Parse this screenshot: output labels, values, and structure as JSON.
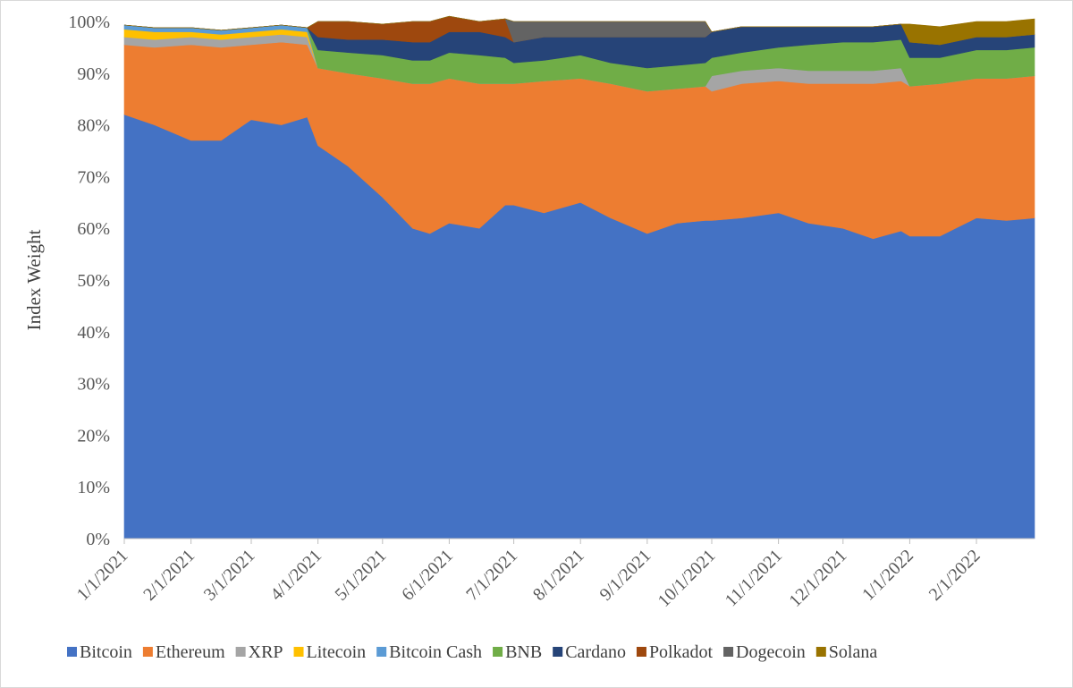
{
  "chart_data": {
    "type": "area",
    "stacked": true,
    "title": "",
    "xlabel": "",
    "ylabel": "Index Weight",
    "ylim": [
      0,
      1
    ],
    "y_ticks": [
      "0%",
      "10%",
      "20%",
      "30%",
      "40%",
      "50%",
      "60%",
      "70%",
      "80%",
      "90%",
      "100%"
    ],
    "x_range": [
      "2021-01-01",
      "2022-02-28"
    ],
    "x_ticks": [
      {
        "date": "2021-01-01",
        "label": "1/1/2021"
      },
      {
        "date": "2021-02-01",
        "label": "2/1/2021"
      },
      {
        "date": "2021-03-01",
        "label": "3/1/2021"
      },
      {
        "date": "2021-04-01",
        "label": "4/1/2021"
      },
      {
        "date": "2021-05-01",
        "label": "5/1/2021"
      },
      {
        "date": "2021-06-01",
        "label": "6/1/2021"
      },
      {
        "date": "2021-07-01",
        "label": "7/1/2021"
      },
      {
        "date": "2021-08-01",
        "label": "8/1/2021"
      },
      {
        "date": "2021-09-01",
        "label": "9/1/2021"
      },
      {
        "date": "2021-10-01",
        "label": "10/1/2021"
      },
      {
        "date": "2021-11-01",
        "label": "11/1/2021"
      },
      {
        "date": "2021-12-01",
        "label": "12/1/2021"
      },
      {
        "date": "2022-01-01",
        "label": "1/1/2022"
      },
      {
        "date": "2022-02-01",
        "label": "2/1/2022"
      }
    ],
    "grid": false,
    "legend_position": "bottom",
    "x": [
      "2021-01-01",
      "2021-01-15",
      "2021-02-01",
      "2021-02-15",
      "2021-03-01",
      "2021-03-15",
      "2021-03-27",
      "2021-04-01",
      "2021-04-15",
      "2021-05-01",
      "2021-05-15",
      "2021-05-23",
      "2021-06-01",
      "2021-06-15",
      "2021-06-27",
      "2021-07-01",
      "2021-07-15",
      "2021-08-01",
      "2021-08-15",
      "2021-09-01",
      "2021-09-15",
      "2021-09-28",
      "2021-10-01",
      "2021-10-15",
      "2021-11-01",
      "2021-11-15",
      "2021-12-01",
      "2021-12-15",
      "2021-12-28",
      "2022-01-01",
      "2022-01-15",
      "2022-02-01",
      "2022-02-15",
      "2022-02-28"
    ],
    "series": [
      {
        "name": "Bitcoin",
        "color": "#4472c4",
        "values": [
          0.82,
          0.8,
          0.77,
          0.77,
          0.81,
          0.8,
          0.815,
          0.76,
          0.72,
          0.66,
          0.6,
          0.59,
          0.61,
          0.6,
          0.645,
          0.645,
          0.63,
          0.65,
          0.62,
          0.59,
          0.61,
          0.615,
          0.615,
          0.62,
          0.63,
          0.61,
          0.6,
          0.58,
          0.595,
          0.585,
          0.585,
          0.62,
          0.615,
          0.62
        ]
      },
      {
        "name": "Ethereum",
        "color": "#ed7d31",
        "values": [
          0.135,
          0.15,
          0.185,
          0.18,
          0.145,
          0.16,
          0.14,
          0.15,
          0.18,
          0.23,
          0.28,
          0.29,
          0.28,
          0.28,
          0.235,
          0.235,
          0.255,
          0.24,
          0.26,
          0.275,
          0.26,
          0.26,
          0.25,
          0.26,
          0.255,
          0.27,
          0.28,
          0.3,
          0.29,
          0.29,
          0.295,
          0.27,
          0.275,
          0.275
        ]
      },
      {
        "name": "XRP",
        "color": "#a5a5a5",
        "values": [
          0.015,
          0.015,
          0.015,
          0.015,
          0.015,
          0.015,
          0.015,
          0,
          0,
          0,
          0,
          0,
          0,
          0,
          0,
          0,
          0,
          0,
          0,
          0,
          0,
          0,
          0.03,
          0.025,
          0.025,
          0.025,
          0.025,
          0.025,
          0.025,
          0,
          0,
          0,
          0,
          0
        ]
      },
      {
        "name": "Litecoin",
        "color": "#ffc000",
        "values": [
          0.015,
          0.015,
          0.01,
          0.01,
          0.01,
          0.01,
          0.01,
          0,
          0,
          0,
          0,
          0,
          0,
          0,
          0,
          0,
          0,
          0,
          0,
          0,
          0,
          0,
          0,
          0,
          0,
          0,
          0,
          0,
          0,
          0,
          0,
          0,
          0,
          0
        ]
      },
      {
        "name": "Bitcoin Cash",
        "color": "#5b9bd5",
        "values": [
          0.008,
          0.008,
          0.008,
          0.008,
          0.008,
          0.008,
          0.008,
          0,
          0,
          0,
          0,
          0,
          0,
          0,
          0,
          0,
          0,
          0,
          0,
          0,
          0,
          0,
          0,
          0,
          0,
          0,
          0,
          0,
          0,
          0,
          0,
          0,
          0,
          0
        ]
      },
      {
        "name": "BNB",
        "color": "#70ad47",
        "values": [
          0,
          0,
          0,
          0,
          0,
          0,
          0,
          0.035,
          0.04,
          0.045,
          0.045,
          0.045,
          0.05,
          0.055,
          0.05,
          0.04,
          0.04,
          0.045,
          0.04,
          0.045,
          0.045,
          0.045,
          0.035,
          0.035,
          0.04,
          0.05,
          0.055,
          0.055,
          0.055,
          0.055,
          0.05,
          0.055,
          0.055,
          0.055
        ]
      },
      {
        "name": "Cardano",
        "color": "#264478",
        "values": [
          0,
          0,
          0,
          0,
          0,
          0,
          0,
          0.025,
          0.025,
          0.03,
          0.035,
          0.035,
          0.04,
          0.045,
          0.04,
          0.04,
          0.045,
          0.035,
          0.05,
          0.06,
          0.055,
          0.05,
          0.05,
          0.05,
          0.04,
          0.035,
          0.03,
          0.03,
          0.03,
          0.03,
          0.025,
          0.025,
          0.025,
          0.025
        ]
      },
      {
        "name": "Polkadot",
        "color": "#9e480e",
        "values": [
          0,
          0,
          0,
          0,
          0,
          0,
          0,
          0.03,
          0.035,
          0.03,
          0.04,
          0.04,
          0.03,
          0.02,
          0.035,
          0,
          0,
          0,
          0,
          0,
          0,
          0,
          0,
          0,
          0,
          0,
          0,
          0,
          0,
          0,
          0,
          0,
          0,
          0
        ]
      },
      {
        "name": "Dogecoin",
        "color": "#636363",
        "values": [
          0,
          0,
          0,
          0,
          0,
          0,
          0,
          0,
          0,
          0,
          0,
          0,
          0,
          0,
          0,
          0.04,
          0.03,
          0.03,
          0.03,
          0.03,
          0.03,
          0.03,
          0,
          0,
          0,
          0,
          0,
          0,
          0,
          0,
          0,
          0,
          0,
          0
        ]
      },
      {
        "name": "Solana",
        "color": "#997300",
        "values": [
          0,
          0,
          0,
          0,
          0,
          0,
          0,
          0,
          0,
          0,
          0,
          0,
          0,
          0,
          0,
          0,
          0,
          0,
          0,
          0,
          0,
          0,
          0,
          0,
          0,
          0,
          0,
          0,
          0,
          0.035,
          0.035,
          0.03,
          0.03,
          0.03
        ]
      }
    ]
  }
}
